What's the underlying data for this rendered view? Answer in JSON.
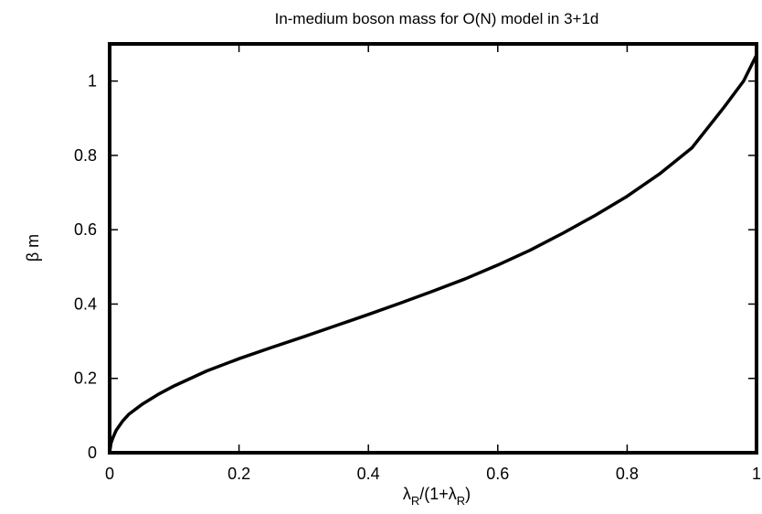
{
  "chart_data": {
    "type": "line",
    "title": "In-medium boson mass for O(N) model in 3+1d",
    "xlabel": {
      "main": "λ",
      "sub1": "R",
      "mid": "/(1+λ",
      "sub2": "R",
      "end": ")"
    },
    "ylabel": "β m",
    "xlim": [
      0,
      1
    ],
    "ylim": [
      0,
      1.1
    ],
    "x_ticks": [
      0,
      0.2,
      0.4,
      0.6,
      0.8,
      1
    ],
    "x_tick_labels": [
      "0",
      "0.2",
      "0.4",
      "0.6",
      "0.8",
      "1"
    ],
    "y_ticks": [
      0,
      0.2,
      0.4,
      0.6,
      0.8,
      1
    ],
    "y_tick_labels": [
      "0",
      "0.2",
      "0.4",
      "0.6",
      "0.8",
      "1"
    ],
    "grid": false,
    "series": [
      {
        "color": "#000000",
        "x": [
          0,
          0.002,
          0.005,
          0.01,
          0.02,
          0.03,
          0.05,
          0.075,
          0.1,
          0.15,
          0.2,
          0.25,
          0.3,
          0.35,
          0.4,
          0.45,
          0.5,
          0.55,
          0.6,
          0.65,
          0.7,
          0.75,
          0.8,
          0.85,
          0.9,
          0.95,
          0.98,
          1.0
        ],
        "y": [
          0.0,
          0.025,
          0.04,
          0.06,
          0.085,
          0.104,
          0.13,
          0.157,
          0.18,
          0.22,
          0.253,
          0.283,
          0.312,
          0.342,
          0.372,
          0.403,
          0.435,
          0.468,
          0.505,
          0.545,
          0.59,
          0.638,
          0.69,
          0.75,
          0.82,
          0.93,
          1.0,
          1.07
        ]
      }
    ]
  }
}
